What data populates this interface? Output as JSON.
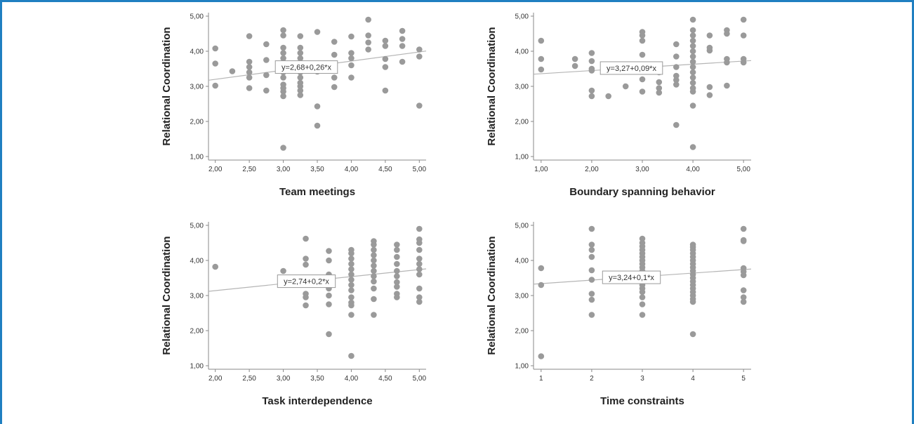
{
  "colors": {
    "border": "#1f7fc1",
    "point": "#9a9a9a",
    "fit_line": "#b5b5b5",
    "axis": "#888888"
  },
  "chart_data": [
    {
      "type": "scatter",
      "xlabel": "Team meetings",
      "ylabel": "Relational Coordination",
      "xticks": [
        "2,00",
        "2,50",
        "3,00",
        "3,50",
        "4,00",
        "4,50",
        "5,00"
      ],
      "yticks": [
        "1,00",
        "2,00",
        "3,00",
        "4,00",
        "5,00"
      ],
      "xlim": [
        1.9,
        5.1
      ],
      "ylim": [
        0.9,
        5.1
      ],
      "fit": {
        "intercept": 2.68,
        "slope": 0.26,
        "label": "y=2,68+0,26*x"
      },
      "points": [
        [
          2.0,
          4.08
        ],
        [
          2.0,
          3.65
        ],
        [
          2.0,
          3.02
        ],
        [
          2.25,
          3.43
        ],
        [
          2.5,
          4.43
        ],
        [
          2.5,
          3.7
        ],
        [
          2.5,
          3.55
        ],
        [
          2.5,
          3.4
        ],
        [
          2.5,
          3.25
        ],
        [
          2.5,
          2.95
        ],
        [
          2.75,
          4.2
        ],
        [
          2.75,
          3.75
        ],
        [
          2.75,
          3.32
        ],
        [
          2.75,
          2.88
        ],
        [
          3.0,
          4.6
        ],
        [
          3.0,
          4.45
        ],
        [
          3.0,
          4.1
        ],
        [
          3.0,
          3.95
        ],
        [
          3.0,
          3.8
        ],
        [
          3.0,
          3.6
        ],
        [
          3.0,
          3.4
        ],
        [
          3.0,
          3.25
        ],
        [
          3.0,
          3.05
        ],
        [
          3.0,
          2.95
        ],
        [
          3.0,
          2.85
        ],
        [
          3.0,
          2.72
        ],
        [
          3.0,
          1.25
        ],
        [
          3.25,
          4.43
        ],
        [
          3.25,
          4.1
        ],
        [
          3.25,
          3.95
        ],
        [
          3.25,
          3.8
        ],
        [
          3.25,
          3.6
        ],
        [
          3.25,
          3.4
        ],
        [
          3.25,
          3.25
        ],
        [
          3.25,
          3.1
        ],
        [
          3.25,
          3.0
        ],
        [
          3.25,
          2.88
        ],
        [
          3.25,
          2.75
        ],
        [
          3.5,
          4.55
        ],
        [
          3.5,
          3.42
        ],
        [
          3.5,
          2.43
        ],
        [
          3.5,
          1.88
        ],
        [
          3.75,
          4.27
        ],
        [
          3.75,
          3.9
        ],
        [
          3.75,
          3.6
        ],
        [
          3.75,
          3.25
        ],
        [
          3.75,
          2.98
        ],
        [
          4.0,
          4.42
        ],
        [
          4.0,
          3.95
        ],
        [
          4.0,
          3.8
        ],
        [
          4.0,
          3.6
        ],
        [
          4.0,
          3.25
        ],
        [
          4.25,
          4.9
        ],
        [
          4.25,
          4.45
        ],
        [
          4.25,
          4.25
        ],
        [
          4.25,
          4.05
        ],
        [
          4.5,
          4.3
        ],
        [
          4.5,
          4.15
        ],
        [
          4.5,
          3.78
        ],
        [
          4.5,
          3.55
        ],
        [
          4.5,
          2.88
        ],
        [
          4.75,
          4.58
        ],
        [
          4.75,
          4.35
        ],
        [
          4.75,
          4.15
        ],
        [
          4.75,
          3.7
        ],
        [
          5.0,
          4.05
        ],
        [
          5.0,
          3.85
        ],
        [
          5.0,
          2.45
        ]
      ]
    },
    {
      "type": "scatter",
      "xlabel": "Boundary spanning behavior",
      "ylabel": "Relational Coordination",
      "xticks": [
        "1,00",
        "2,00",
        "3,00",
        "4,00",
        "5,00"
      ],
      "yticks": [
        "1,00",
        "2,00",
        "3,00",
        "4,00",
        "5,00"
      ],
      "xlim": [
        0.85,
        5.15
      ],
      "ylim": [
        0.9,
        5.1
      ],
      "fit": {
        "intercept": 3.27,
        "slope": 0.09,
        "label": "y=3,27+0,09*x"
      },
      "points": [
        [
          1.0,
          4.3
        ],
        [
          1.0,
          3.78
        ],
        [
          1.0,
          3.48
        ],
        [
          1.67,
          3.78
        ],
        [
          1.67,
          3.58
        ],
        [
          2.0,
          3.95
        ],
        [
          2.0,
          3.72
        ],
        [
          2.0,
          3.5
        ],
        [
          2.0,
          3.45
        ],
        [
          2.0,
          2.88
        ],
        [
          2.0,
          2.72
        ],
        [
          2.33,
          3.62
        ],
        [
          2.33,
          2.72
        ],
        [
          2.67,
          3.0
        ],
        [
          3.0,
          4.55
        ],
        [
          3.0,
          4.45
        ],
        [
          3.0,
          4.3
        ],
        [
          3.0,
          3.9
        ],
        [
          3.0,
          3.62
        ],
        [
          3.0,
          3.2
        ],
        [
          3.0,
          2.85
        ],
        [
          3.33,
          3.4
        ],
        [
          3.33,
          3.12
        ],
        [
          3.33,
          2.95
        ],
        [
          3.33,
          2.82
        ],
        [
          3.67,
          4.2
        ],
        [
          3.67,
          3.85
        ],
        [
          3.67,
          3.55
        ],
        [
          3.67,
          3.3
        ],
        [
          3.67,
          3.18
        ],
        [
          3.67,
          3.05
        ],
        [
          3.67,
          1.9
        ],
        [
          4.0,
          4.9
        ],
        [
          4.0,
          4.6
        ],
        [
          4.0,
          4.45
        ],
        [
          4.0,
          4.3
        ],
        [
          4.0,
          4.15
        ],
        [
          4.0,
          4.0
        ],
        [
          4.0,
          3.85
        ],
        [
          4.0,
          3.7
        ],
        [
          4.0,
          3.55
        ],
        [
          4.0,
          3.4
        ],
        [
          4.0,
          3.25
        ],
        [
          4.0,
          3.1
        ],
        [
          4.0,
          2.95
        ],
        [
          4.0,
          2.85
        ],
        [
          4.0,
          2.45
        ],
        [
          4.0,
          1.27
        ],
        [
          4.33,
          4.45
        ],
        [
          4.33,
          4.1
        ],
        [
          4.33,
          4.02
        ],
        [
          4.33,
          2.98
        ],
        [
          4.33,
          2.75
        ],
        [
          4.67,
          4.6
        ],
        [
          4.67,
          4.5
        ],
        [
          4.67,
          3.78
        ],
        [
          4.67,
          3.68
        ],
        [
          4.67,
          3.02
        ],
        [
          5.0,
          4.9
        ],
        [
          5.0,
          4.45
        ],
        [
          5.0,
          3.78
        ],
        [
          5.0,
          3.68
        ]
      ]
    },
    {
      "type": "scatter",
      "xlabel": "Task interdependence",
      "ylabel": "Relational Coordination",
      "xticks": [
        "2,00",
        "2,50",
        "3,00",
        "3,50",
        "4,00",
        "4,50",
        "5,00"
      ],
      "yticks": [
        "1,00",
        "2,00",
        "3,00",
        "4,00",
        "5,00"
      ],
      "xlim": [
        1.9,
        5.1
      ],
      "ylim": [
        0.9,
        5.1
      ],
      "fit": {
        "intercept": 2.74,
        "slope": 0.2,
        "label": "y=2,74+0,2*x"
      },
      "points": [
        [
          2.0,
          3.82
        ],
        [
          3.0,
          3.7
        ],
        [
          3.33,
          4.62
        ],
        [
          3.33,
          4.05
        ],
        [
          3.33,
          3.88
        ],
        [
          3.33,
          3.45
        ],
        [
          3.33,
          3.05
        ],
        [
          3.33,
          2.95
        ],
        [
          3.33,
          2.72
        ],
        [
          3.67,
          4.27
        ],
        [
          3.67,
          4.0
        ],
        [
          3.67,
          3.6
        ],
        [
          3.67,
          3.2
        ],
        [
          3.67,
          3.0
        ],
        [
          3.67,
          2.75
        ],
        [
          3.67,
          1.9
        ],
        [
          4.0,
          4.3
        ],
        [
          4.0,
          4.2
        ],
        [
          4.0,
          4.05
        ],
        [
          4.0,
          3.9
        ],
        [
          4.0,
          3.75
        ],
        [
          4.0,
          3.6
        ],
        [
          4.0,
          3.45
        ],
        [
          4.0,
          3.3
        ],
        [
          4.0,
          3.15
        ],
        [
          4.0,
          2.95
        ],
        [
          4.0,
          2.8
        ],
        [
          4.0,
          2.72
        ],
        [
          4.0,
          2.45
        ],
        [
          4.0,
          1.28
        ],
        [
          4.33,
          4.55
        ],
        [
          4.33,
          4.45
        ],
        [
          4.33,
          4.3
        ],
        [
          4.33,
          4.15
        ],
        [
          4.33,
          4.0
        ],
        [
          4.33,
          3.85
        ],
        [
          4.33,
          3.7
        ],
        [
          4.33,
          3.55
        ],
        [
          4.33,
          3.4
        ],
        [
          4.33,
          3.2
        ],
        [
          4.33,
          2.9
        ],
        [
          4.33,
          2.45
        ],
        [
          4.67,
          4.45
        ],
        [
          4.67,
          4.3
        ],
        [
          4.67,
          4.1
        ],
        [
          4.67,
          3.9
        ],
        [
          4.67,
          3.7
        ],
        [
          4.67,
          3.55
        ],
        [
          4.67,
          3.38
        ],
        [
          4.67,
          3.25
        ],
        [
          4.67,
          3.05
        ],
        [
          4.67,
          2.95
        ],
        [
          5.0,
          4.9
        ],
        [
          5.0,
          4.6
        ],
        [
          5.0,
          4.5
        ],
        [
          5.0,
          4.3
        ],
        [
          5.0,
          4.05
        ],
        [
          5.0,
          3.9
        ],
        [
          5.0,
          3.75
        ],
        [
          5.0,
          3.6
        ],
        [
          5.0,
          3.2
        ],
        [
          5.0,
          2.95
        ],
        [
          5.0,
          2.82
        ]
      ]
    },
    {
      "type": "scatter",
      "xlabel": "Time constraints",
      "ylabel": "Relational Coordination",
      "xticks": [
        "1",
        "2",
        "3",
        "4",
        "5"
      ],
      "yticks": [
        "1,00",
        "2,00",
        "3,00",
        "4,00",
        "5,00"
      ],
      "xlim": [
        0.85,
        5.15
      ],
      "ylim": [
        0.9,
        5.1
      ],
      "fit": {
        "intercept": 3.24,
        "slope": 0.1,
        "label": "y=3,24+0,1*x"
      },
      "points": [
        [
          1,
          3.78
        ],
        [
          1,
          3.3
        ],
        [
          1,
          1.27
        ],
        [
          2,
          4.9
        ],
        [
          2,
          4.45
        ],
        [
          2,
          4.3
        ],
        [
          2,
          4.1
        ],
        [
          2,
          3.72
        ],
        [
          2,
          3.45
        ],
        [
          2,
          3.05
        ],
        [
          2,
          2.88
        ],
        [
          2,
          2.45
        ],
        [
          3,
          4.62
        ],
        [
          3,
          4.5
        ],
        [
          3,
          4.4
        ],
        [
          3,
          4.3
        ],
        [
          3,
          4.2
        ],
        [
          3,
          4.1
        ],
        [
          3,
          4.0
        ],
        [
          3,
          3.9
        ],
        [
          3,
          3.8
        ],
        [
          3,
          3.7
        ],
        [
          3,
          3.6
        ],
        [
          3,
          3.5
        ],
        [
          3,
          3.4
        ],
        [
          3,
          3.3
        ],
        [
          3,
          3.2
        ],
        [
          3,
          3.1
        ],
        [
          3,
          2.95
        ],
        [
          3,
          2.75
        ],
        [
          3,
          2.45
        ],
        [
          4,
          4.45
        ],
        [
          4,
          4.38
        ],
        [
          4,
          4.3
        ],
        [
          4,
          4.2
        ],
        [
          4,
          4.1
        ],
        [
          4,
          4.0
        ],
        [
          4,
          3.9
        ],
        [
          4,
          3.8
        ],
        [
          4,
          3.7
        ],
        [
          4,
          3.6
        ],
        [
          4,
          3.5
        ],
        [
          4,
          3.4
        ],
        [
          4,
          3.3
        ],
        [
          4,
          3.2
        ],
        [
          4,
          3.1
        ],
        [
          4,
          3.0
        ],
        [
          4,
          2.9
        ],
        [
          4,
          2.82
        ],
        [
          4,
          1.9
        ],
        [
          5,
          4.9
        ],
        [
          5,
          4.58
        ],
        [
          5,
          4.55
        ],
        [
          5,
          3.78
        ],
        [
          5,
          3.68
        ],
        [
          5,
          3.58
        ],
        [
          5,
          3.15
        ],
        [
          5,
          2.95
        ],
        [
          5,
          2.82
        ]
      ]
    }
  ]
}
